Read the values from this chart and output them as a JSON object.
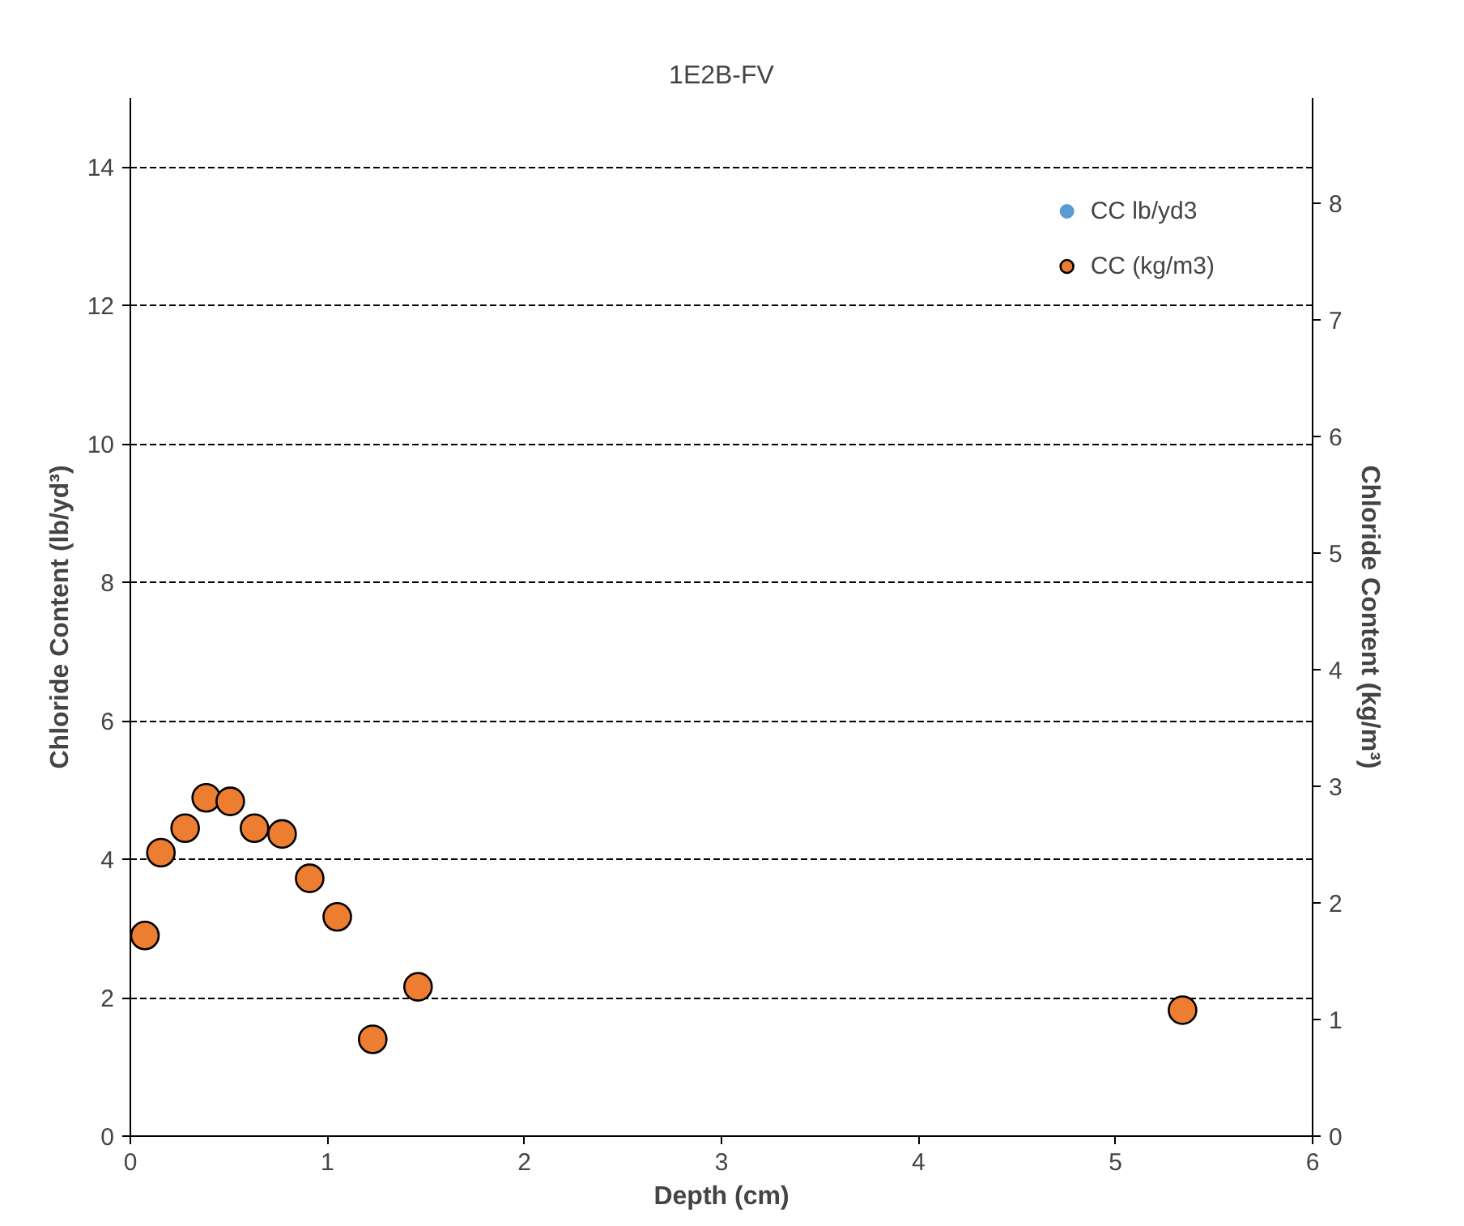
{
  "chart_data": {
    "type": "scatter",
    "title": "1E2B-FV",
    "xlabel": "Depth (cm)",
    "ylabel": "Chloride Content (lb/yd³)",
    "y2label": "Chloride Content (kg/m³)",
    "xlim": [
      0,
      6
    ],
    "xticks": [
      0,
      1,
      2,
      3,
      4,
      5,
      6
    ],
    "ylim": [
      0,
      15
    ],
    "yticks": [
      0,
      2,
      4,
      6,
      8,
      10,
      12,
      14
    ],
    "y2lim": [
      0,
      8.9
    ],
    "y2ticks": [
      0,
      1,
      2,
      3,
      4,
      5,
      6,
      7,
      8
    ],
    "grid": "y",
    "legend": "top right",
    "marker": "circle",
    "x": [
      0.074,
      0.155,
      0.278,
      0.385,
      0.507,
      0.63,
      0.77,
      0.91,
      1.05,
      1.23,
      1.46,
      5.34
    ],
    "series": [
      {
        "name": "CC lb/yd3",
        "color": "#5b9bd5",
        "values": [
          null,
          null,
          null,
          null,
          null,
          null,
          null,
          null,
          null,
          null,
          null,
          null
        ]
      },
      {
        "name": "CC (kg/m3)",
        "color": "#ed7d31",
        "axis": "y2",
        "values": [
          1.72,
          2.43,
          2.64,
          2.9,
          2.87,
          2.64,
          2.59,
          2.21,
          1.88,
          0.83,
          1.28,
          1.08
        ]
      }
    ]
  }
}
